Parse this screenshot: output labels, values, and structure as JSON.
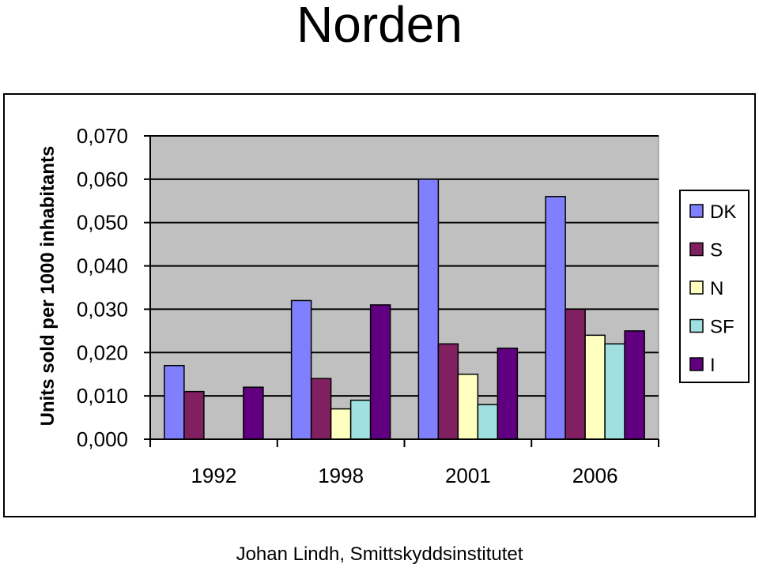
{
  "title": "Norden",
  "footer": "Johan Lindh, Smittskyddsinstitutet",
  "chart_data": {
    "type": "bar",
    "title": "",
    "xlabel": "",
    "ylabel": "Units sold per 1000 inhabitants",
    "categories": [
      "1992",
      "1998",
      "2001",
      "2006"
    ],
    "ylim": [
      0,
      0.07
    ],
    "yticks": [
      "0,000",
      "0,010",
      "0,020",
      "0,030",
      "0,040",
      "0,050",
      "0,060",
      "0,070"
    ],
    "grid": true,
    "legend_position": "right",
    "plot_background": "#c0c0c0",
    "series": [
      {
        "name": "DK",
        "color": "#8080ff",
        "values": [
          0.017,
          0.032,
          0.06,
          0.056
        ]
      },
      {
        "name": "S",
        "color": "#802060",
        "values": [
          0.011,
          0.014,
          0.022,
          0.03
        ]
      },
      {
        "name": "N",
        "color": "#ffffc0",
        "values": [
          0,
          0.007,
          0.015,
          0.024
        ]
      },
      {
        "name": "SF",
        "color": "#a0e0e0",
        "values": [
          0,
          0.009,
          0.008,
          0.022
        ]
      },
      {
        "name": "I",
        "color": "#600080",
        "values": [
          0.012,
          0.031,
          0.021,
          0.025
        ]
      }
    ]
  }
}
